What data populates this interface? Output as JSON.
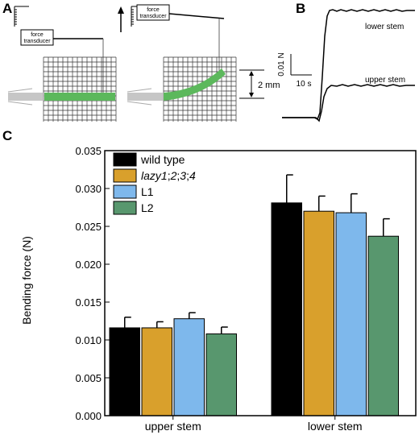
{
  "panels": {
    "a": {
      "letter": "A",
      "transducer_label": "force transducer",
      "scale_label": "2 mm"
    },
    "b": {
      "letter": "B",
      "force_scale": "0.01 N",
      "time_scale": "10 s",
      "trace_lower_label": "lower stem",
      "trace_upper_label": "upper stem"
    },
    "c": {
      "letter": "C"
    }
  },
  "colors": {
    "wild_type": "#000000",
    "lazy": "#d9a02c",
    "L1": "#7eb8ec",
    "L2": "#58976e",
    "stem_green": "#5cb85c",
    "grid": "#333333"
  },
  "chart_data": {
    "type": "bar",
    "categories": [
      "upper stem",
      "lower stem"
    ],
    "series": [
      {
        "name": "wild type",
        "label_parts": [
          "wild type"
        ],
        "values": [
          0.0116,
          0.0281
        ],
        "errors": [
          0.0014,
          0.0037
        ],
        "color": "#000000"
      },
      {
        "name": "lazy1;2;3;4",
        "label_parts": [
          "lazy1",
          ";",
          "2",
          ";",
          "3",
          ";",
          "4"
        ],
        "italic": [
          true,
          false,
          true,
          false,
          true,
          false,
          true
        ],
        "values": [
          0.0116,
          0.027
        ],
        "errors": [
          0.0008,
          0.002
        ],
        "color": "#d9a02c"
      },
      {
        "name": "L1",
        "label_parts": [
          "L1"
        ],
        "values": [
          0.0128,
          0.0268
        ],
        "errors": [
          0.0008,
          0.0025
        ],
        "color": "#7eb8ec"
      },
      {
        "name": "L2",
        "label_parts": [
          "L2"
        ],
        "values": [
          0.0108,
          0.0237
        ],
        "errors": [
          0.0009,
          0.0023
        ],
        "color": "#58976e"
      }
    ],
    "ylabel": "Bending force (N)",
    "xlabel": "",
    "ylim": [
      0,
      0.035
    ],
    "yticks": [
      "0.000",
      "0.005",
      "0.010",
      "0.015",
      "0.020",
      "0.025",
      "0.030",
      "0.035"
    ],
    "ytick_values": [
      0,
      0.005,
      0.01,
      0.015,
      0.02,
      0.025,
      0.03,
      0.035
    ],
    "legend_position": "top-left",
    "grid": false
  }
}
